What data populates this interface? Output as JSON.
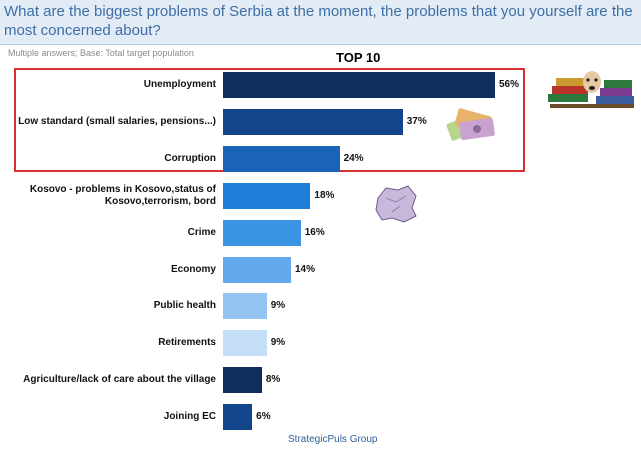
{
  "title": "What are the biggest problems of Serbia at the moment, the problems that you yourself are the most concerned about?",
  "subtitle": "Multiple answers; Base: Total target population",
  "top_label": "TOP 10",
  "footer": "StrategicPuls Group",
  "chart_data": {
    "type": "bar",
    "orientation": "horizontal",
    "categories": [
      "Unemployment",
      "Low standard (small salaries, pensions...)",
      "Corruption",
      "Kosovo - problems in Kosovo,status of Kosovo,terrorism, bord",
      "Crime",
      "Economy",
      "Public health",
      "Retirements",
      "Agriculture/lack of care about the village",
      "Joining EC"
    ],
    "values": [
      56,
      37,
      24,
      18,
      16,
      14,
      9,
      9,
      8,
      6
    ],
    "value_labels": [
      "56%",
      "37%",
      "24%",
      "18%",
      "16%",
      "14%",
      "9%",
      "9%",
      "8%",
      "6%"
    ],
    "colors": [
      "#0e2f5c",
      "#12458a",
      "#1a63b8",
      "#1e7ed8",
      "#3b93e4",
      "#63a8ea",
      "#94c5f2",
      "#c4def7",
      "#0e2f5c",
      "#12458a"
    ],
    "highlighted_top": 3,
    "highlight_color": "#d43131"
  },
  "icons": {
    "books": "books-stack-icon",
    "money": "banknotes-icon",
    "map": "kosovo-map-icon"
  }
}
